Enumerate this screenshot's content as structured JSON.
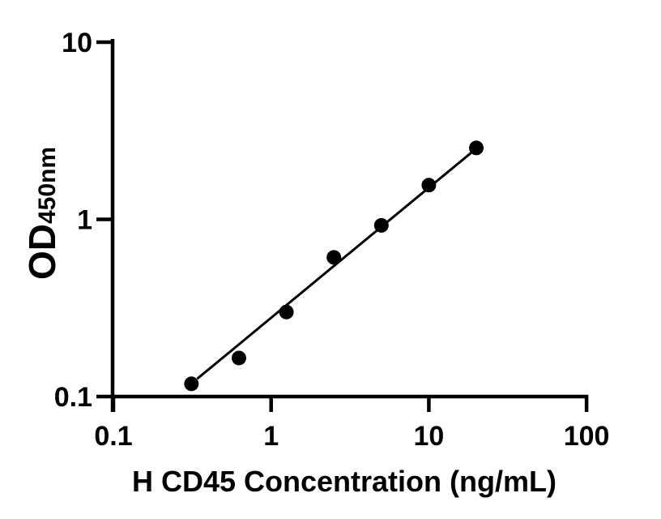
{
  "colors": {
    "foreground": "#000000",
    "background": "#ffffff"
  },
  "chart_data": {
    "type": "scatter",
    "title": "",
    "xlabel": "H CD45 Concentration (ng/mL)",
    "ylabel_main": "OD",
    "ylabel_sub": "450nm",
    "x_scale": "log",
    "y_scale": "log",
    "xlim": [
      0.1,
      100
    ],
    "ylim": [
      0.1,
      10
    ],
    "grid": false,
    "legend": "none",
    "x_ticks": [
      {
        "value": 0.1,
        "label": "0.1"
      },
      {
        "value": 1,
        "label": "1"
      },
      {
        "value": 10,
        "label": "10"
      },
      {
        "value": 100,
        "label": "100"
      }
    ],
    "y_ticks": [
      {
        "value": 0.1,
        "label": "0.1"
      },
      {
        "value": 1,
        "label": "1"
      },
      {
        "value": 10,
        "label": "10"
      }
    ],
    "series": [
      {
        "name": "standard-curve-points",
        "marker": "circle",
        "color": "#000000",
        "points": [
          {
            "x": 0.3125,
            "y": 0.118
          },
          {
            "x": 0.625,
            "y": 0.165
          },
          {
            "x": 1.25,
            "y": 0.3
          },
          {
            "x": 2.5,
            "y": 0.61
          },
          {
            "x": 5,
            "y": 0.925
          },
          {
            "x": 10,
            "y": 1.56
          },
          {
            "x": 20,
            "y": 2.53
          }
        ]
      }
    ],
    "trendline": {
      "x1": 0.34,
      "y1": 0.126,
      "x2": 20.1,
      "y2": 2.52,
      "color": "#000000"
    }
  }
}
